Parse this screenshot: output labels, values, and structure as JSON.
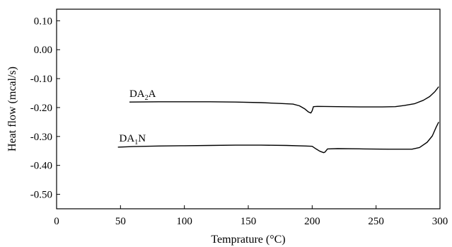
{
  "chart_data": {
    "type": "line",
    "xlabel": "Temprature (°C)",
    "ylabel": "Heat flow (mcal/s)",
    "xlim": [
      0,
      300
    ],
    "ylim": [
      -0.55,
      0.14
    ],
    "x_ticks": [
      0,
      50,
      100,
      150,
      200,
      250,
      300
    ],
    "y_ticks": [
      0.1,
      0.0,
      -0.1,
      -0.2,
      -0.3,
      -0.4,
      -0.5
    ],
    "x_tick_labels": [
      "0",
      "50",
      "100",
      "150",
      "200",
      "250",
      "300"
    ],
    "y_tick_labels": [
      "0.10",
      "0.00",
      "-0.10",
      "-0.20",
      "-0.30",
      "-0.40",
      "-0.50"
    ],
    "grid": false,
    "legend": "none",
    "series": [
      {
        "label_main": "DA",
        "label_sub": "2",
        "label_tail": "A",
        "label_anchor": [
          57,
          -0.163
        ],
        "color": "#000000",
        "points": [
          [
            57,
            -0.181
          ],
          [
            80,
            -0.18
          ],
          [
            100,
            -0.18
          ],
          [
            120,
            -0.18
          ],
          [
            140,
            -0.181
          ],
          [
            160,
            -0.183
          ],
          [
            175,
            -0.186
          ],
          [
            185,
            -0.188
          ],
          [
            190,
            -0.194
          ],
          [
            194,
            -0.204
          ],
          [
            197,
            -0.215
          ],
          [
            199,
            -0.219
          ],
          [
            200,
            -0.211
          ],
          [
            201,
            -0.197
          ],
          [
            204,
            -0.196
          ],
          [
            220,
            -0.197
          ],
          [
            240,
            -0.198
          ],
          [
            255,
            -0.198
          ],
          [
            265,
            -0.197
          ],
          [
            272,
            -0.193
          ],
          [
            280,
            -0.187
          ],
          [
            287,
            -0.175
          ],
          [
            292,
            -0.162
          ],
          [
            296,
            -0.145
          ],
          [
            299,
            -0.128
          ]
        ]
      },
      {
        "label_main": "DA",
        "label_sub": "1",
        "label_tail": "N",
        "label_anchor": [
          49,
          -0.318
        ],
        "color": "#000000",
        "points": [
          [
            48,
            -0.337
          ],
          [
            60,
            -0.335
          ],
          [
            80,
            -0.333
          ],
          [
            100,
            -0.332
          ],
          [
            120,
            -0.331
          ],
          [
            140,
            -0.33
          ],
          [
            160,
            -0.33
          ],
          [
            180,
            -0.331
          ],
          [
            195,
            -0.333
          ],
          [
            200,
            -0.334
          ],
          [
            203,
            -0.343
          ],
          [
            206,
            -0.351
          ],
          [
            209,
            -0.356
          ],
          [
            210,
            -0.354
          ],
          [
            212,
            -0.343
          ],
          [
            220,
            -0.342
          ],
          [
            240,
            -0.343
          ],
          [
            260,
            -0.344
          ],
          [
            278,
            -0.344
          ],
          [
            284,
            -0.338
          ],
          [
            290,
            -0.32
          ],
          [
            294,
            -0.298
          ],
          [
            297,
            -0.268
          ],
          [
            299,
            -0.25
          ]
        ]
      }
    ]
  }
}
